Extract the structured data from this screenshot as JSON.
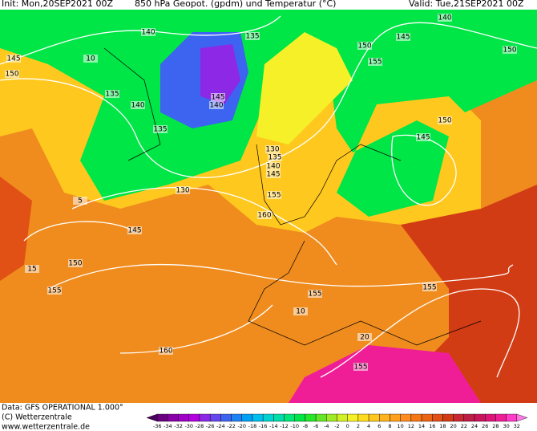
{
  "header": {
    "init": "Init: Mon,20SEP2021 00Z",
    "title": "850 hPa Geopot. (gpdm) und Temperatur (°C)",
    "valid": "Valid: Tue,21SEP2021 00Z"
  },
  "map": {
    "contour_labels": [
      140,
      135,
      140,
      145,
      150,
      155,
      150,
      145,
      150,
      135,
      140,
      145,
      140,
      135,
      130,
      135,
      140,
      145,
      150,
      145,
      130,
      155,
      160,
      145,
      150,
      155,
      155,
      155,
      160,
      155,
      10,
      5,
      15,
      10,
      20
    ]
  },
  "footer": {
    "source": "Data: GFS OPERATIONAL 1.000°",
    "copyright": "(C) Wetterzentrale",
    "url": "www.wetterzentrale.de"
  },
  "scale": {
    "labels": [
      -36,
      -34,
      -32,
      -30,
      -28,
      -26,
      -24,
      -22,
      -20,
      -18,
      -16,
      -14,
      -12,
      -10,
      -8,
      -6,
      -4,
      -2,
      0,
      2,
      4,
      6,
      8,
      10,
      12,
      14,
      16,
      18,
      20,
      22,
      24,
      26,
      28,
      30,
      32
    ],
    "colors": [
      "#4b0060",
      "#6a0080",
      "#8a00a8",
      "#a000c8",
      "#b400e0",
      "#8c28e6",
      "#6446ec",
      "#3c64f0",
      "#1e82f5",
      "#00a0f5",
      "#00bef0",
      "#00d2d2",
      "#00dcaa",
      "#00e678",
      "#00e646",
      "#28e628",
      "#64e628",
      "#a0eb28",
      "#d2f028",
      "#f5f028",
      "#ffdc1e",
      "#ffc81e",
      "#ffb41e",
      "#ffa01e",
      "#ff8c1e",
      "#f57814",
      "#eb6414",
      "#e15014",
      "#d23c14",
      "#c82832",
      "#be1e46",
      "#c8145a",
      "#dc1478",
      "#f01e96",
      "#ff3cc8",
      "#ff78e6"
    ]
  }
}
